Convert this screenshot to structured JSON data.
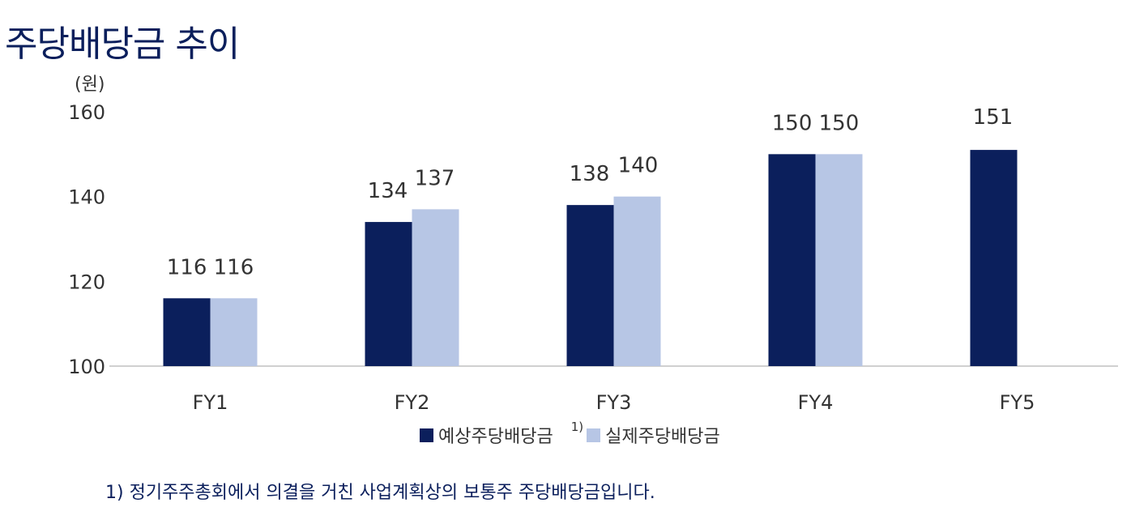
{
  "title": "주당배당금 추이",
  "unit_label": "(원)",
  "chart_data": {
    "type": "bar",
    "title": "주당배당금 추이",
    "ylabel": "(원)",
    "ylim": [
      100,
      160
    ],
    "yticks": [
      100,
      120,
      140,
      160
    ],
    "categories": [
      "FY1",
      "FY2",
      "FY3",
      "FY4",
      "FY5"
    ],
    "series": [
      {
        "name": "예상주당배당금",
        "color": "#0b1f5c",
        "values": [
          116,
          134,
          138,
          150,
          151
        ]
      },
      {
        "name": "실제주당배당금",
        "color": "#b7c6e5",
        "values": [
          116,
          137,
          140,
          150,
          null
        ]
      }
    ],
    "data_labels": [
      "116 116",
      "134",
      "137",
      "138",
      "140",
      "150 150",
      "151"
    ],
    "legend_note": "1)",
    "legend_position": "bottom",
    "grid": false
  },
  "footnote": "1) 정기주주총회에서 의결을 거친 사업계획상의 보통주 주당배당금입니다."
}
